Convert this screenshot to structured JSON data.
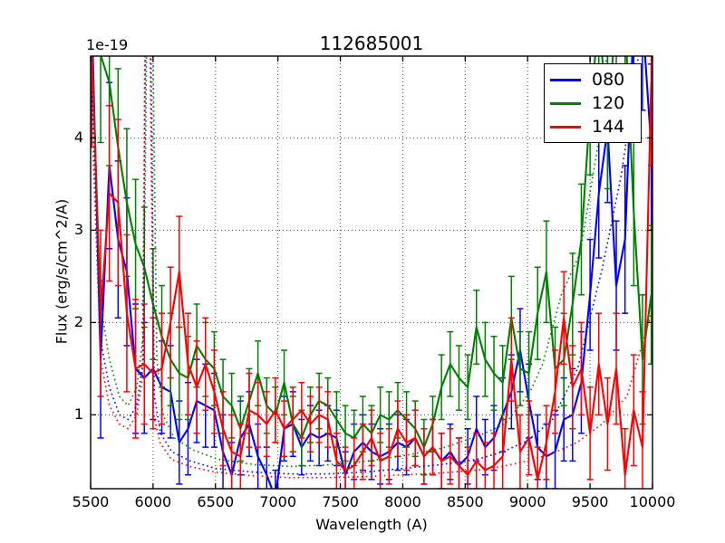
{
  "chart_data": {
    "type": "line",
    "title": "112685001",
    "xlabel": "Wavelength (A)",
    "ylabel": "Flux (erg/s/cm^2/A)",
    "offset_text": "1e-19",
    "xlim": [
      5500,
      10000
    ],
    "ylim": [
      0.2,
      4.886
    ],
    "xticks": [
      5500,
      6000,
      6500,
      7000,
      7500,
      8000,
      8500,
      9000,
      9500,
      10000
    ],
    "yticks": [
      1,
      2,
      3,
      4
    ],
    "grid": true,
    "legend": {
      "position": "upper right",
      "entries": [
        "080",
        "120",
        "144"
      ]
    },
    "x": [
      5510,
      5580,
      5650,
      5720,
      5790,
      5860,
      5930,
      6000,
      6070,
      6140,
      6210,
      6280,
      6350,
      6420,
      6490,
      6560,
      6630,
      6700,
      6770,
      6840,
      6910,
      6980,
      7050,
      7120,
      7190,
      7260,
      7330,
      7400,
      7470,
      7540,
      7610,
      7680,
      7750,
      7820,
      7890,
      7960,
      8030,
      8100,
      8170,
      8240,
      8310,
      8380,
      8450,
      8520,
      8590,
      8660,
      8730,
      8800,
      8870,
      8940,
      9010,
      9080,
      9150,
      9220,
      9290,
      9360,
      9430,
      9500,
      9570,
      9640,
      9710,
      9780,
      9850,
      9920,
      9990
    ],
    "series": [
      {
        "name": "080",
        "color": "#0000ff",
        "style": "solid",
        "in_legend": true,
        "y": [
          5.3,
          1.6,
          3.7,
          2.9,
          2.55,
          1.5,
          1.4,
          1.5,
          1.3,
          1.25,
          0.7,
          0.85,
          1.15,
          1.1,
          1.05,
          0.6,
          0.35,
          0.75,
          0.9,
          0.55,
          0.35,
          0.1,
          0.85,
          0.9,
          0.65,
          0.8,
          0.75,
          0.8,
          0.75,
          0.35,
          0.6,
          0.7,
          0.6,
          0.55,
          0.6,
          0.7,
          0.65,
          0.75,
          0.55,
          0.65,
          0.5,
          0.6,
          0.45,
          0.55,
          0.85,
          0.65,
          0.75,
          1.0,
          1.25,
          1.7,
          1.15,
          0.65,
          0.55,
          0.6,
          0.95,
          1.0,
          1.35,
          2.3,
          3.4,
          4.1,
          2.4,
          2.9,
          5.3,
          5.3,
          3.9
        ],
        "yerr": [
          1.1,
          0.85,
          0.9,
          0.85,
          0.8,
          0.7,
          0.6,
          0.55,
          0.5,
          0.5,
          0.45,
          0.5,
          0.45,
          0.45,
          0.4,
          0.4,
          0.35,
          0.4,
          0.35,
          0.35,
          0.3,
          0.3,
          0.35,
          0.35,
          0.3,
          0.3,
          0.3,
          0.3,
          0.3,
          0.25,
          0.3,
          0.3,
          0.3,
          0.3,
          0.3,
          0.3,
          0.3,
          0.3,
          0.3,
          0.3,
          0.3,
          0.3,
          0.3,
          0.3,
          0.35,
          0.3,
          0.35,
          0.4,
          0.4,
          0.45,
          0.4,
          0.35,
          0.35,
          0.4,
          0.45,
          0.5,
          0.55,
          0.6,
          0.7,
          0.8,
          0.7,
          0.8,
          0.9,
          1.0,
          0.9
        ]
      },
      {
        "name": "120",
        "color": "#008000",
        "style": "solid",
        "in_legend": true,
        "y": [
          6.0,
          4.9,
          4.6,
          3.9,
          3.3,
          2.85,
          2.6,
          2.2,
          1.85,
          1.6,
          1.45,
          1.4,
          1.75,
          1.6,
          1.5,
          1.2,
          1.1,
          0.85,
          1.15,
          1.45,
          1.1,
          1.0,
          1.35,
          0.9,
          0.75,
          1.0,
          1.15,
          1.1,
          0.95,
          0.8,
          0.75,
          0.9,
          0.8,
          1.0,
          0.95,
          1.05,
          0.95,
          0.85,
          0.65,
          0.9,
          1.3,
          1.55,
          1.4,
          1.3,
          1.95,
          1.6,
          1.45,
          1.35,
          2.05,
          1.5,
          1.45,
          2.1,
          2.55,
          1.5,
          1.6,
          2.2,
          2.9,
          4.3,
          5.3,
          4.2,
          5.3,
          5.3,
          3.2,
          1.6,
          2.3
        ],
        "yerr": [
          1.0,
          0.95,
          0.9,
          0.85,
          0.8,
          0.7,
          0.65,
          0.6,
          0.55,
          0.5,
          0.5,
          0.45,
          0.45,
          0.4,
          0.4,
          0.4,
          0.35,
          0.35,
          0.35,
          0.35,
          0.3,
          0.3,
          0.35,
          0.3,
          0.3,
          0.3,
          0.3,
          0.3,
          0.3,
          0.3,
          0.3,
          0.3,
          0.3,
          0.3,
          0.3,
          0.3,
          0.3,
          0.3,
          0.3,
          0.3,
          0.35,
          0.35,
          0.35,
          0.35,
          0.4,
          0.4,
          0.4,
          0.4,
          0.45,
          0.4,
          0.45,
          0.5,
          0.55,
          0.45,
          0.5,
          0.55,
          0.6,
          0.7,
          0.8,
          0.75,
          0.85,
          0.9,
          0.8,
          0.7,
          0.75
        ]
      },
      {
        "name": "144",
        "color": "#ff0000",
        "style": "solid",
        "in_legend": true,
        "y": [
          5.0,
          2.1,
          3.4,
          3.3,
          2.1,
          1.5,
          1.55,
          1.45,
          1.5,
          2.0,
          2.55,
          1.55,
          1.3,
          1.55,
          1.25,
          0.85,
          0.6,
          0.55,
          1.05,
          1.0,
          0.9,
          1.05,
          0.85,
          0.95,
          1.05,
          0.9,
          1.0,
          0.95,
          0.5,
          0.4,
          0.45,
          0.6,
          0.75,
          0.5,
          0.55,
          0.85,
          0.7,
          0.75,
          0.55,
          0.65,
          0.5,
          0.55,
          0.45,
          0.35,
          0.5,
          0.4,
          0.45,
          0.55,
          1.6,
          0.6,
          0.75,
          0.3,
          0.7,
          1.25,
          2.05,
          1.3,
          1.5,
          0.8,
          1.55,
          0.9,
          1.5,
          0.35,
          1.05,
          0.65,
          4.6
        ],
        "yerr": [
          1.1,
          0.9,
          0.95,
          0.9,
          0.85,
          0.75,
          0.65,
          0.6,
          0.6,
          0.6,
          0.6,
          0.55,
          0.5,
          0.5,
          0.45,
          0.4,
          0.4,
          0.35,
          0.4,
          0.35,
          0.35,
          0.35,
          0.3,
          0.35,
          0.3,
          0.3,
          0.3,
          0.3,
          0.3,
          0.25,
          0.3,
          0.3,
          0.3,
          0.3,
          0.3,
          0.3,
          0.3,
          0.3,
          0.3,
          0.3,
          0.3,
          0.3,
          0.3,
          0.3,
          0.3,
          0.3,
          0.35,
          0.4,
          0.45,
          0.4,
          0.4,
          0.35,
          0.4,
          0.45,
          0.5,
          0.45,
          0.5,
          0.5,
          0.55,
          0.5,
          0.6,
          0.5,
          0.6,
          0.6,
          0.9
        ]
      },
      {
        "name": "080-noise",
        "color": "#0000ff",
        "style": "dotted",
        "in_legend": false,
        "x": [
          5510,
          5580,
          5650,
          5730,
          5800,
          5870,
          5920,
          5945,
          5975,
          6010,
          6060,
          6150,
          6300,
          6500,
          6800,
          7100,
          7400,
          7700,
          8000,
          8300,
          8600,
          8800,
          9000,
          9200,
          9400,
          9600,
          9750,
          9900,
          9990
        ],
        "y": [
          4.5,
          1.8,
          1.3,
          1.0,
          0.95,
          1.1,
          1.6,
          6.0,
          6.0,
          1.2,
          0.8,
          0.6,
          0.5,
          0.42,
          0.38,
          0.36,
          0.36,
          0.38,
          0.42,
          0.46,
          0.52,
          0.6,
          0.72,
          0.95,
          1.5,
          2.6,
          3.6,
          5.0,
          5.5
        ]
      },
      {
        "name": "120-noise",
        "color": "#008000",
        "style": "dotted",
        "in_legend": false,
        "x": [
          5510,
          5580,
          5650,
          5730,
          5800,
          5870,
          5925,
          5955,
          5990,
          6030,
          6080,
          6170,
          6320,
          6520,
          6820,
          7120,
          7420,
          7720,
          8020,
          8320,
          8620,
          8820,
          9020,
          9120,
          9270,
          9420,
          9560,
          9700
        ],
        "y": [
          5.0,
          2.2,
          1.6,
          1.2,
          1.1,
          1.3,
          1.9,
          6.0,
          6.0,
          1.6,
          1.0,
          0.75,
          0.62,
          0.52,
          0.46,
          0.44,
          0.46,
          0.5,
          0.56,
          0.64,
          0.78,
          0.9,
          1.25,
          1.55,
          2.3,
          2.75,
          3.9,
          5.8
        ]
      },
      {
        "name": "144-noise",
        "color": "#ff0000",
        "style": "dotted",
        "in_legend": false,
        "x": [
          5510,
          5580,
          5650,
          5730,
          5800,
          5870,
          5915,
          5940,
          5970,
          6005,
          6055,
          6145,
          6295,
          6495,
          6795,
          7095,
          7395,
          7695,
          7995,
          8295,
          8595,
          8795,
          8995,
          9195,
          9395,
          9595,
          9795,
          9990
        ],
        "y": [
          4.2,
          1.6,
          1.1,
          0.9,
          0.85,
          1.0,
          1.4,
          6.0,
          6.0,
          1.0,
          0.7,
          0.52,
          0.44,
          0.38,
          0.34,
          0.32,
          0.32,
          0.33,
          0.35,
          0.37,
          0.4,
          0.44,
          0.5,
          0.58,
          0.7,
          0.9,
          1.2,
          2.1
        ]
      }
    ]
  }
}
